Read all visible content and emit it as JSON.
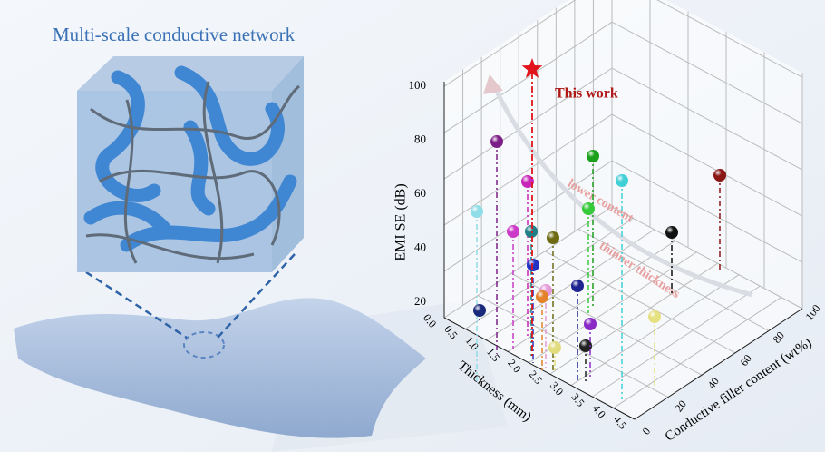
{
  "header": {
    "title": "Multi-scale conductive network"
  },
  "plot": {
    "z_axis": {
      "title": "EMI SE (dB)",
      "ticks": [
        "20",
        "40",
        "60",
        "80",
        "100"
      ]
    },
    "x_axis": {
      "title": "Thickness (mm)",
      "ticks": [
        "0.0",
        "0.5",
        "1.0",
        "1.5",
        "2.0",
        "2.5",
        "3.0",
        "3.5",
        "4.0",
        "4.5"
      ]
    },
    "y_axis": {
      "title": "Conductive filler content (wt%)",
      "ticks": [
        "0",
        "20",
        "40",
        "60",
        "80",
        "100"
      ]
    },
    "annotations": {
      "highlight": "This work",
      "trend_1": "lower content",
      "trend_2": "thinner thickness"
    }
  }
}
